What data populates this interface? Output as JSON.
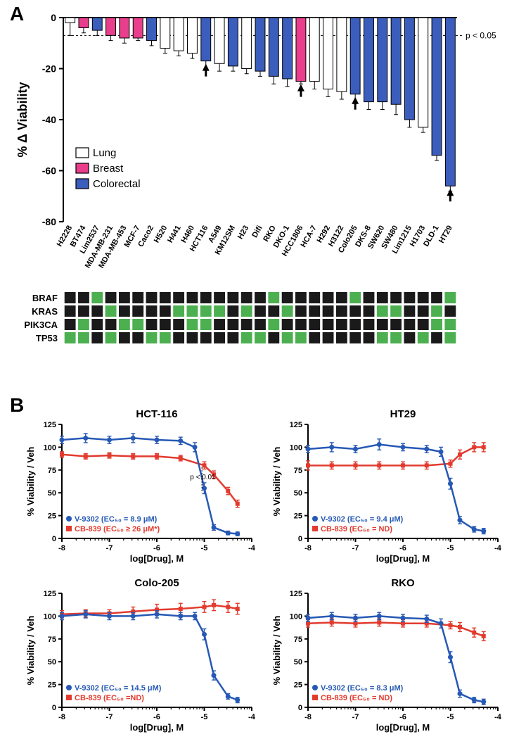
{
  "panelA": {
    "label": "A",
    "type": "bar",
    "y_label": "% Δ Viability",
    "y_lim": [
      -80,
      0
    ],
    "y_tick_step": 20,
    "p_label": "p < 0.05",
    "p_line_y": -7,
    "label_fontsize": 18,
    "tick_fontsize": 14,
    "colors": {
      "Lung": "#ffffff",
      "Breast": "#e83e8c",
      "Colorectal": "#3b5dbb",
      "outline": "#000000"
    },
    "legend_items": [
      {
        "label": "Lung",
        "color": "#ffffff"
      },
      {
        "label": "Breast",
        "color": "#e83e8c"
      },
      {
        "label": "Colorectal",
        "color": "#3b5dbb"
      }
    ],
    "arrows_at": [
      "HCT116",
      "HCC1806",
      "Colo205",
      "HT29"
    ],
    "bars": [
      {
        "name": "H2228",
        "type": "Lung",
        "val": -2,
        "err": 5
      },
      {
        "name": "BT474",
        "type": "Breast",
        "val": -4,
        "err": 2
      },
      {
        "name": "Lim2537",
        "type": "Colorectal",
        "val": -5,
        "err": 2
      },
      {
        "name": "MDA-MB-231",
        "type": "Breast",
        "val": -7,
        "err": 2
      },
      {
        "name": "MDA-MB-453",
        "type": "Breast",
        "val": -8,
        "err": 2
      },
      {
        "name": "MCF-7",
        "type": "Breast",
        "val": -8,
        "err": 1
      },
      {
        "name": "Caco2",
        "type": "Colorectal",
        "val": -9,
        "err": 2
      },
      {
        "name": "H520",
        "type": "Lung",
        "val": -12,
        "err": 2
      },
      {
        "name": "H441",
        "type": "Lung",
        "val": -13,
        "err": 2
      },
      {
        "name": "H460",
        "type": "Lung",
        "val": -14,
        "err": 2
      },
      {
        "name": "HCT116",
        "type": "Colorectal",
        "val": -17,
        "err": 3
      },
      {
        "name": "A549",
        "type": "Lung",
        "val": -18,
        "err": 3
      },
      {
        "name": "KM12SM",
        "type": "Colorectal",
        "val": -19,
        "err": 2
      },
      {
        "name": "H23",
        "type": "Lung",
        "val": -20,
        "err": 2
      },
      {
        "name": "Difi",
        "type": "Colorectal",
        "val": -21,
        "err": 2
      },
      {
        "name": "RKO",
        "type": "Colorectal",
        "val": -23,
        "err": 3
      },
      {
        "name": "DKO-1",
        "type": "Colorectal",
        "val": -24,
        "err": 3
      },
      {
        "name": "HCC1806",
        "type": "Breast",
        "val": -25,
        "err": 1
      },
      {
        "name": "HCA-7",
        "type": "Lung",
        "val": -25,
        "err": 3
      },
      {
        "name": "H292",
        "type": "Lung",
        "val": -28,
        "err": 3
      },
      {
        "name": "H3122",
        "type": "Lung",
        "val": -29,
        "err": 3
      },
      {
        "name": "Colo205",
        "type": "Colorectal",
        "val": -30,
        "err": 3
      },
      {
        "name": "DKS-8",
        "type": "Colorectal",
        "val": -33,
        "err": 3
      },
      {
        "name": "SW620",
        "type": "Colorectal",
        "val": -33,
        "err": 3
      },
      {
        "name": "SW480",
        "type": "Colorectal",
        "val": -34,
        "err": 4
      },
      {
        "name": "Lim1215",
        "type": "Colorectal",
        "val": -40,
        "err": 3
      },
      {
        "name": "H1703",
        "type": "Lung",
        "val": -43,
        "err": 2
      },
      {
        "name": "DLD-1",
        "type": "Colorectal",
        "val": -54,
        "err": 2
      },
      {
        "name": "HT29",
        "type": "Colorectal",
        "val": -66,
        "err": 2
      }
    ],
    "mutation_rows": [
      "BRAF",
      "KRAS",
      "PIK3CA",
      "TP53"
    ],
    "mutation_colors": {
      "wt": "#1a1a1a",
      "mut": "#4caf50"
    },
    "mutations": {
      "BRAF": [
        0,
        0,
        1,
        0,
        0,
        0,
        0,
        0,
        0,
        0,
        0,
        0,
        0,
        0,
        0,
        1,
        0,
        0,
        0,
        0,
        0,
        1,
        0,
        0,
        0,
        0,
        0,
        0,
        1
      ],
      "KRAS": [
        0,
        0,
        0,
        1,
        0,
        0,
        0,
        0,
        1,
        1,
        1,
        1,
        0,
        1,
        0,
        0,
        1,
        0,
        0,
        0,
        0,
        0,
        0,
        1,
        1,
        0,
        0,
        1,
        0
      ],
      "PIK3CA": [
        0,
        1,
        0,
        0,
        1,
        1,
        0,
        0,
        0,
        1,
        1,
        0,
        0,
        0,
        0,
        1,
        0,
        0,
        0,
        0,
        0,
        0,
        0,
        0,
        0,
        0,
        0,
        1,
        1
      ],
      "TP53": [
        1,
        1,
        0,
        1,
        0,
        0,
        1,
        1,
        0,
        0,
        0,
        0,
        0,
        1,
        1,
        0,
        1,
        1,
        0,
        0,
        0,
        0,
        0,
        1,
        1,
        0,
        1,
        0,
        1
      ]
    },
    "mut_label_fontsize": 13
  },
  "panelB": {
    "label": "B",
    "x_label": "log[Drug], M",
    "y_label": "% Viability / Veh",
    "x_lim": [
      -8,
      -4
    ],
    "y_lim": [
      0,
      125
    ],
    "y_ticks": [
      0,
      25,
      50,
      75,
      100,
      125
    ],
    "x_ticks": [
      -8,
      -7,
      -6,
      -5,
      -4
    ],
    "title_fontsize": 15,
    "label_fontsize": 13,
    "tick_fontsize": 11,
    "legend_fontsize": 11,
    "colors": {
      "v9302": "#2659b5",
      "cb839": "#e23b2e"
    },
    "subplots": [
      {
        "title": "HCT-116",
        "legend": [
          "V-9302 (EC₅₀ = 8.9 μM)",
          "CB-839 (EC₅₀ ≥ 26 μM*)"
        ],
        "p_note": "p < 0.01",
        "blue": {
          "x": [
            -8,
            -7.5,
            -7,
            -6.5,
            -6,
            -5.5,
            -5.2,
            -5,
            -4.8,
            -4.5,
            -4.3
          ],
          "y": [
            108,
            110,
            108,
            110,
            108,
            107,
            100,
            55,
            12,
            6,
            5
          ],
          "err": [
            4,
            5,
            4,
            5,
            4,
            4,
            5,
            6,
            3,
            2,
            2
          ]
        },
        "red": {
          "x": [
            -8,
            -7.5,
            -7,
            -6.5,
            -6,
            -5.5,
            -5,
            -4.8,
            -4.5,
            -4.3
          ],
          "y": [
            92,
            90,
            91,
            90,
            90,
            88,
            80,
            70,
            52,
            38
          ],
          "err": [
            3,
            3,
            3,
            3,
            3,
            3,
            4,
            4,
            4,
            4
          ]
        }
      },
      {
        "title": "HT29",
        "legend": [
          "V-9302 (EC₅₀ = 9.4 μM)",
          "CB-839 (EC₅₀ = ND)"
        ],
        "blue": {
          "x": [
            -8,
            -7.5,
            -7,
            -6.5,
            -6,
            -5.5,
            -5.2,
            -5,
            -4.8,
            -4.5,
            -4.3
          ],
          "y": [
            98,
            100,
            98,
            103,
            100,
            98,
            95,
            60,
            20,
            10,
            8
          ],
          "err": [
            4,
            5,
            4,
            6,
            4,
            4,
            5,
            6,
            4,
            3,
            3
          ]
        },
        "red": {
          "x": [
            -8,
            -7.5,
            -7,
            -6.5,
            -6,
            -5.5,
            -5,
            -4.8,
            -4.5,
            -4.3
          ],
          "y": [
            80,
            80,
            80,
            80,
            80,
            80,
            82,
            92,
            100,
            100
          ],
          "err": [
            5,
            4,
            4,
            4,
            4,
            4,
            4,
            5,
            5,
            5
          ]
        }
      },
      {
        "title": "Colo-205",
        "legend": [
          "V-9302 (EC₅₀ = 14.5 μM)",
          "CB-839 (EC₅₀ =ND)"
        ],
        "blue": {
          "x": [
            -8,
            -7.5,
            -7,
            -6.5,
            -6,
            -5.5,
            -5.2,
            -5,
            -4.8,
            -4.5,
            -4.3
          ],
          "y": [
            100,
            102,
            100,
            100,
            102,
            100,
            100,
            80,
            35,
            12,
            8
          ],
          "err": [
            4,
            4,
            4,
            4,
            4,
            4,
            4,
            6,
            5,
            3,
            3
          ]
        },
        "red": {
          "x": [
            -8,
            -7.5,
            -7,
            -6.5,
            -6,
            -5.5,
            -5,
            -4.8,
            -4.5,
            -4.3
          ],
          "y": [
            102,
            103,
            103,
            105,
            107,
            108,
            110,
            112,
            110,
            108
          ],
          "err": [
            4,
            4,
            4,
            5,
            6,
            6,
            6,
            6,
            6,
            6
          ]
        }
      },
      {
        "title": "RKO",
        "legend": [
          "V-9302 (EC₅₀ = 8.3 μM)",
          "CB-839 (EC₅₀ = ND)"
        ],
        "blue": {
          "x": [
            -8,
            -7.5,
            -7,
            -6.5,
            -6,
            -5.5,
            -5.2,
            -5,
            -4.8,
            -4.5,
            -4.3
          ],
          "y": [
            98,
            100,
            98,
            100,
            98,
            97,
            92,
            55,
            15,
            8,
            6
          ],
          "err": [
            4,
            4,
            4,
            4,
            4,
            4,
            5,
            6,
            4,
            3,
            3
          ]
        },
        "red": {
          "x": [
            -8,
            -7.5,
            -7,
            -6.5,
            -6,
            -5.5,
            -5,
            -4.8,
            -4.5,
            -4.3
          ],
          "y": [
            92,
            93,
            92,
            93,
            92,
            92,
            90,
            88,
            82,
            78
          ],
          "err": [
            4,
            4,
            4,
            4,
            4,
            4,
            4,
            5,
            5,
            5
          ]
        }
      }
    ]
  }
}
